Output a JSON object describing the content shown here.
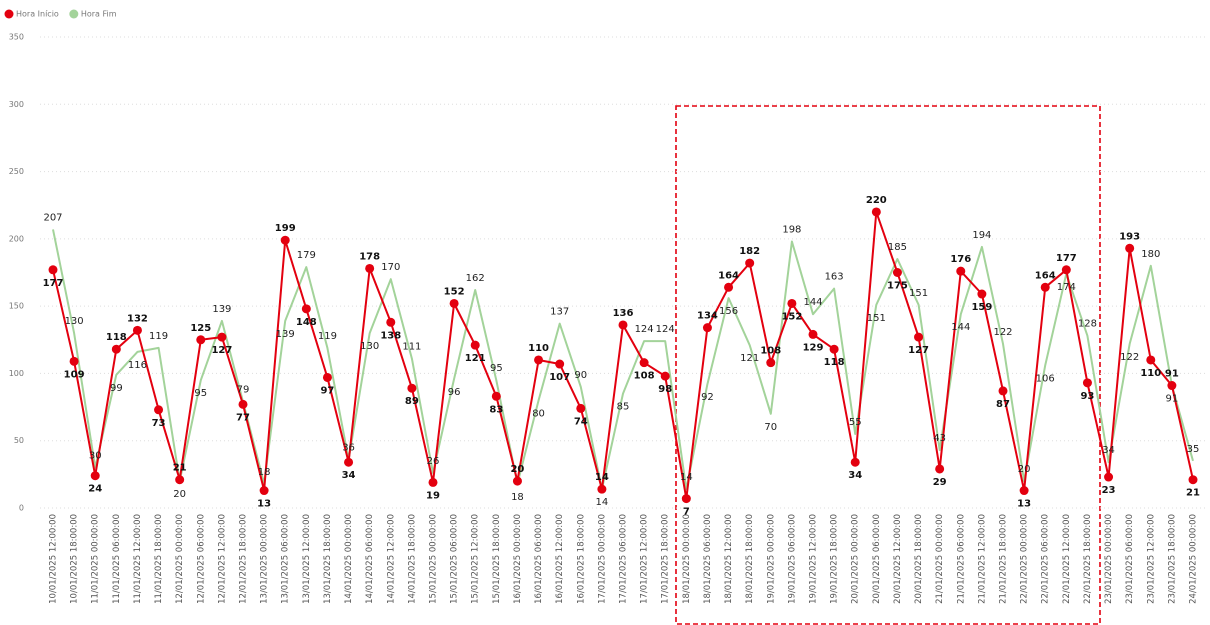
{
  "chart_data": {
    "type": "line",
    "categories": [
      "10/01/2025 12:00:00",
      "10/01/2025 18:00:00",
      "11/01/2025 00:00:00",
      "11/01/2025 06:00:00",
      "11/01/2025 12:00:00",
      "11/01/2025 18:00:00",
      "12/01/2025 00:00:00",
      "12/01/2025 06:00:00",
      "12/01/2025 12:00:00",
      "12/01/2025 18:00:00",
      "13/01/2025 00:00:00",
      "13/01/2025 06:00:00",
      "13/01/2025 12:00:00",
      "13/01/2025 18:00:00",
      "14/01/2025 00:00:00",
      "14/01/2025 06:00:00",
      "14/01/2025 12:00:00",
      "14/01/2025 18:00:00",
      "15/01/2025 00:00:00",
      "15/01/2025 06:00:00",
      "15/01/2025 12:00:00",
      "15/01/2025 18:00:00",
      "16/01/2025 00:00:00",
      "16/01/2025 06:00:00",
      "16/01/2025 12:00:00",
      "16/01/2025 18:00:00",
      "17/01/2025 00:00:00",
      "17/01/2025 06:00:00",
      "17/01/2025 12:00:00",
      "17/01/2025 18:00:00",
      "18/01/2025 00:00:00",
      "18/01/2025 06:00:00",
      "18/01/2025 12:00:00",
      "18/01/2025 18:00:00",
      "19/01/2025 00:00:00",
      "19/01/2025 06:00:00",
      "19/01/2025 12:00:00",
      "19/01/2025 18:00:00",
      "20/01/2025 00:00:00",
      "20/01/2025 06:00:00",
      "20/01/2025 12:00:00",
      "20/01/2025 18:00:00",
      "21/01/2025 00:00:00",
      "21/01/2025 06:00:00",
      "21/01/2025 12:00:00",
      "21/01/2025 18:00:00",
      "22/01/2025 00:00:00",
      "22/01/2025 06:00:00",
      "22/01/2025 12:00:00",
      "22/01/2025 18:00:00",
      "23/01/2025 00:00:00",
      "23/01/2025 06:00:00",
      "23/01/2025 12:00:00",
      "23/01/2025 18:00:00",
      "24/01/2025 00:00:00"
    ],
    "series": [
      {
        "name": "Hora Início",
        "color": "#e3000f",
        "markers": true,
        "values": [
          177,
          109,
          24,
          118,
          132,
          73,
          21,
          125,
          127,
          77,
          13,
          199,
          148,
          97,
          34,
          178,
          138,
          89,
          19,
          152,
          121,
          83,
          20,
          110,
          107,
          74,
          14,
          136,
          108,
          98,
          7,
          134,
          164,
          182,
          108,
          152,
          129,
          118,
          34,
          220,
          175,
          127,
          29,
          176,
          159,
          87,
          13,
          164,
          177,
          93,
          23,
          193,
          110,
          91,
          21
        ]
      },
      {
        "name": "Hora Fim",
        "color": "#a3d39a",
        "markers": false,
        "values": [
          207,
          130,
          30,
          99,
          116,
          119,
          20,
          95,
          139,
          79,
          18,
          139,
          179,
          119,
          36,
          130,
          170,
          111,
          26,
          96,
          162,
          95,
          18,
          80,
          137,
          90,
          14,
          85,
          124,
          124,
          14,
          92,
          156,
          121,
          70,
          198,
          144,
          163,
          55,
          151,
          185,
          151,
          43,
          144,
          194,
          122,
          20,
          106,
          174,
          128,
          34,
          122,
          180,
          91,
          35
        ]
      }
    ],
    "ylim": [
      0,
      350
    ],
    "yticks": [
      0,
      50,
      100,
      150,
      200,
      250,
      300,
      350
    ],
    "grid": true,
    "legend": "top-left"
  }
}
